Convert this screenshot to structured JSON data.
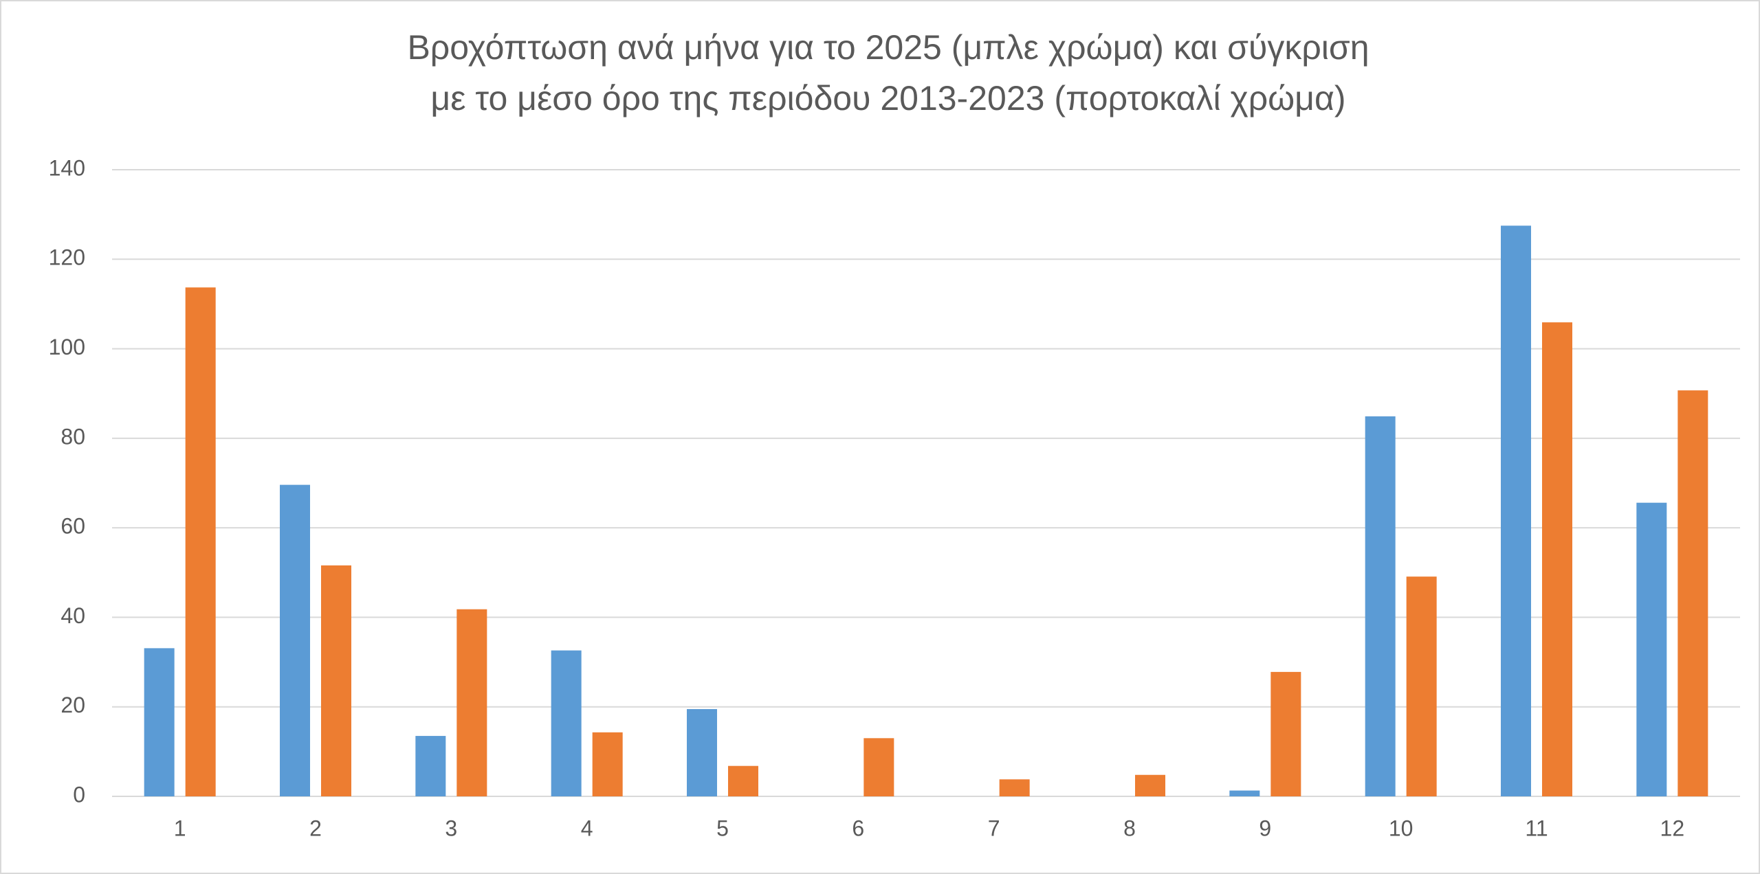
{
  "chart_data": {
    "type": "bar",
    "title": [
      "Βροχόπτωση ανά μήνα για το 2025 (μπλε χρώμα) και σύγκριση",
      "με το μέσο όρο της περιόδου 2013-2023 (πορτοκαλί χρώμα)"
    ],
    "categories": [
      "1",
      "2",
      "3",
      "4",
      "5",
      "6",
      "7",
      "8",
      "9",
      "10",
      "11",
      "12"
    ],
    "series": [
      {
        "color": "#5b9bd5",
        "values": [
          33.1,
          69.6,
          13.5,
          32.6,
          19.5,
          0,
          0,
          0,
          1.3,
          84.9,
          127.5,
          65.6
        ]
      },
      {
        "color": "#ed7d31",
        "values": [
          113.7,
          51.6,
          41.8,
          14.3,
          6.8,
          13,
          3.8,
          4.8,
          27.8,
          49.1,
          105.9,
          90.7
        ]
      }
    ],
    "ylim": [
      0,
      140
    ],
    "yticks": [
      0,
      20,
      40,
      60,
      80,
      100,
      120,
      140
    ],
    "grid": true
  }
}
